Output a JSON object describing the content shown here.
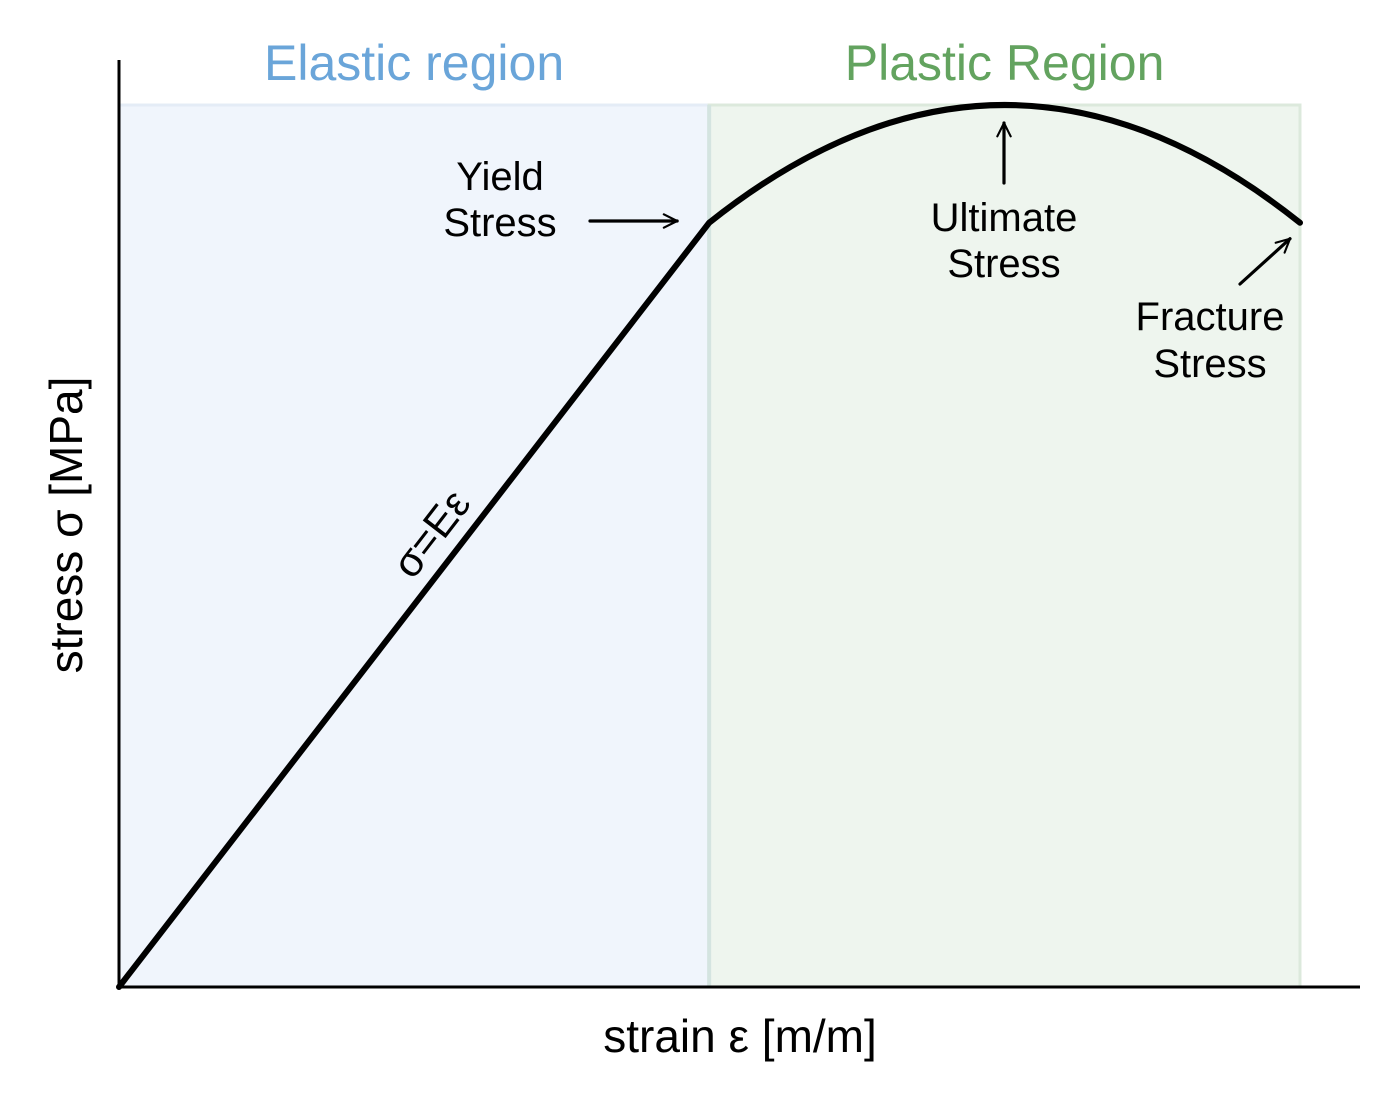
{
  "chart_data": {
    "type": "line",
    "title": "",
    "xlabel": "strain ε [m/m]",
    "ylabel": "stress σ [MPa]",
    "xlim": [
      0,
      1
    ],
    "ylim": [
      0,
      1
    ],
    "grid": false,
    "ticks": false,
    "regions": [
      {
        "label": "Elastic region",
        "x_start": 0.0,
        "x_end": 0.4997,
        "fill": "#f0f5fc",
        "label_color": "#6aa5d9"
      },
      {
        "label": "Plastic Region",
        "x_start": 0.4997,
        "x_end": 1.0,
        "fill": "#eef5ee",
        "label_color": "#63a35f"
      }
    ],
    "series": [
      {
        "color": "#000000",
        "x": [
          0.0,
          0.4997,
          0.55,
          0.6,
          0.65,
          0.7,
          0.75,
          0.8,
          0.85,
          0.9,
          0.95,
          1.0
        ],
        "y": [
          0.0,
          0.8665,
          0.9159,
          0.9541,
          0.981,
          0.9958,
          0.9982,
          0.9883,
          0.9663,
          0.9324,
          0.887,
          0.8665
        ]
      }
    ],
    "equation_label": "σ=Eε",
    "annotations": [
      {
        "text_lines": [
          "Yield",
          "Stress"
        ],
        "target_x": 0.4997,
        "target_y": 0.8665
      },
      {
        "text_lines": [
          "Ultimate",
          "Stress"
        ],
        "target_x": 0.75,
        "target_y": 1.0
      },
      {
        "text_lines": [
          "Fracture",
          "Stress"
        ],
        "target_x": 1.0,
        "target_y": 0.8665
      }
    ]
  }
}
